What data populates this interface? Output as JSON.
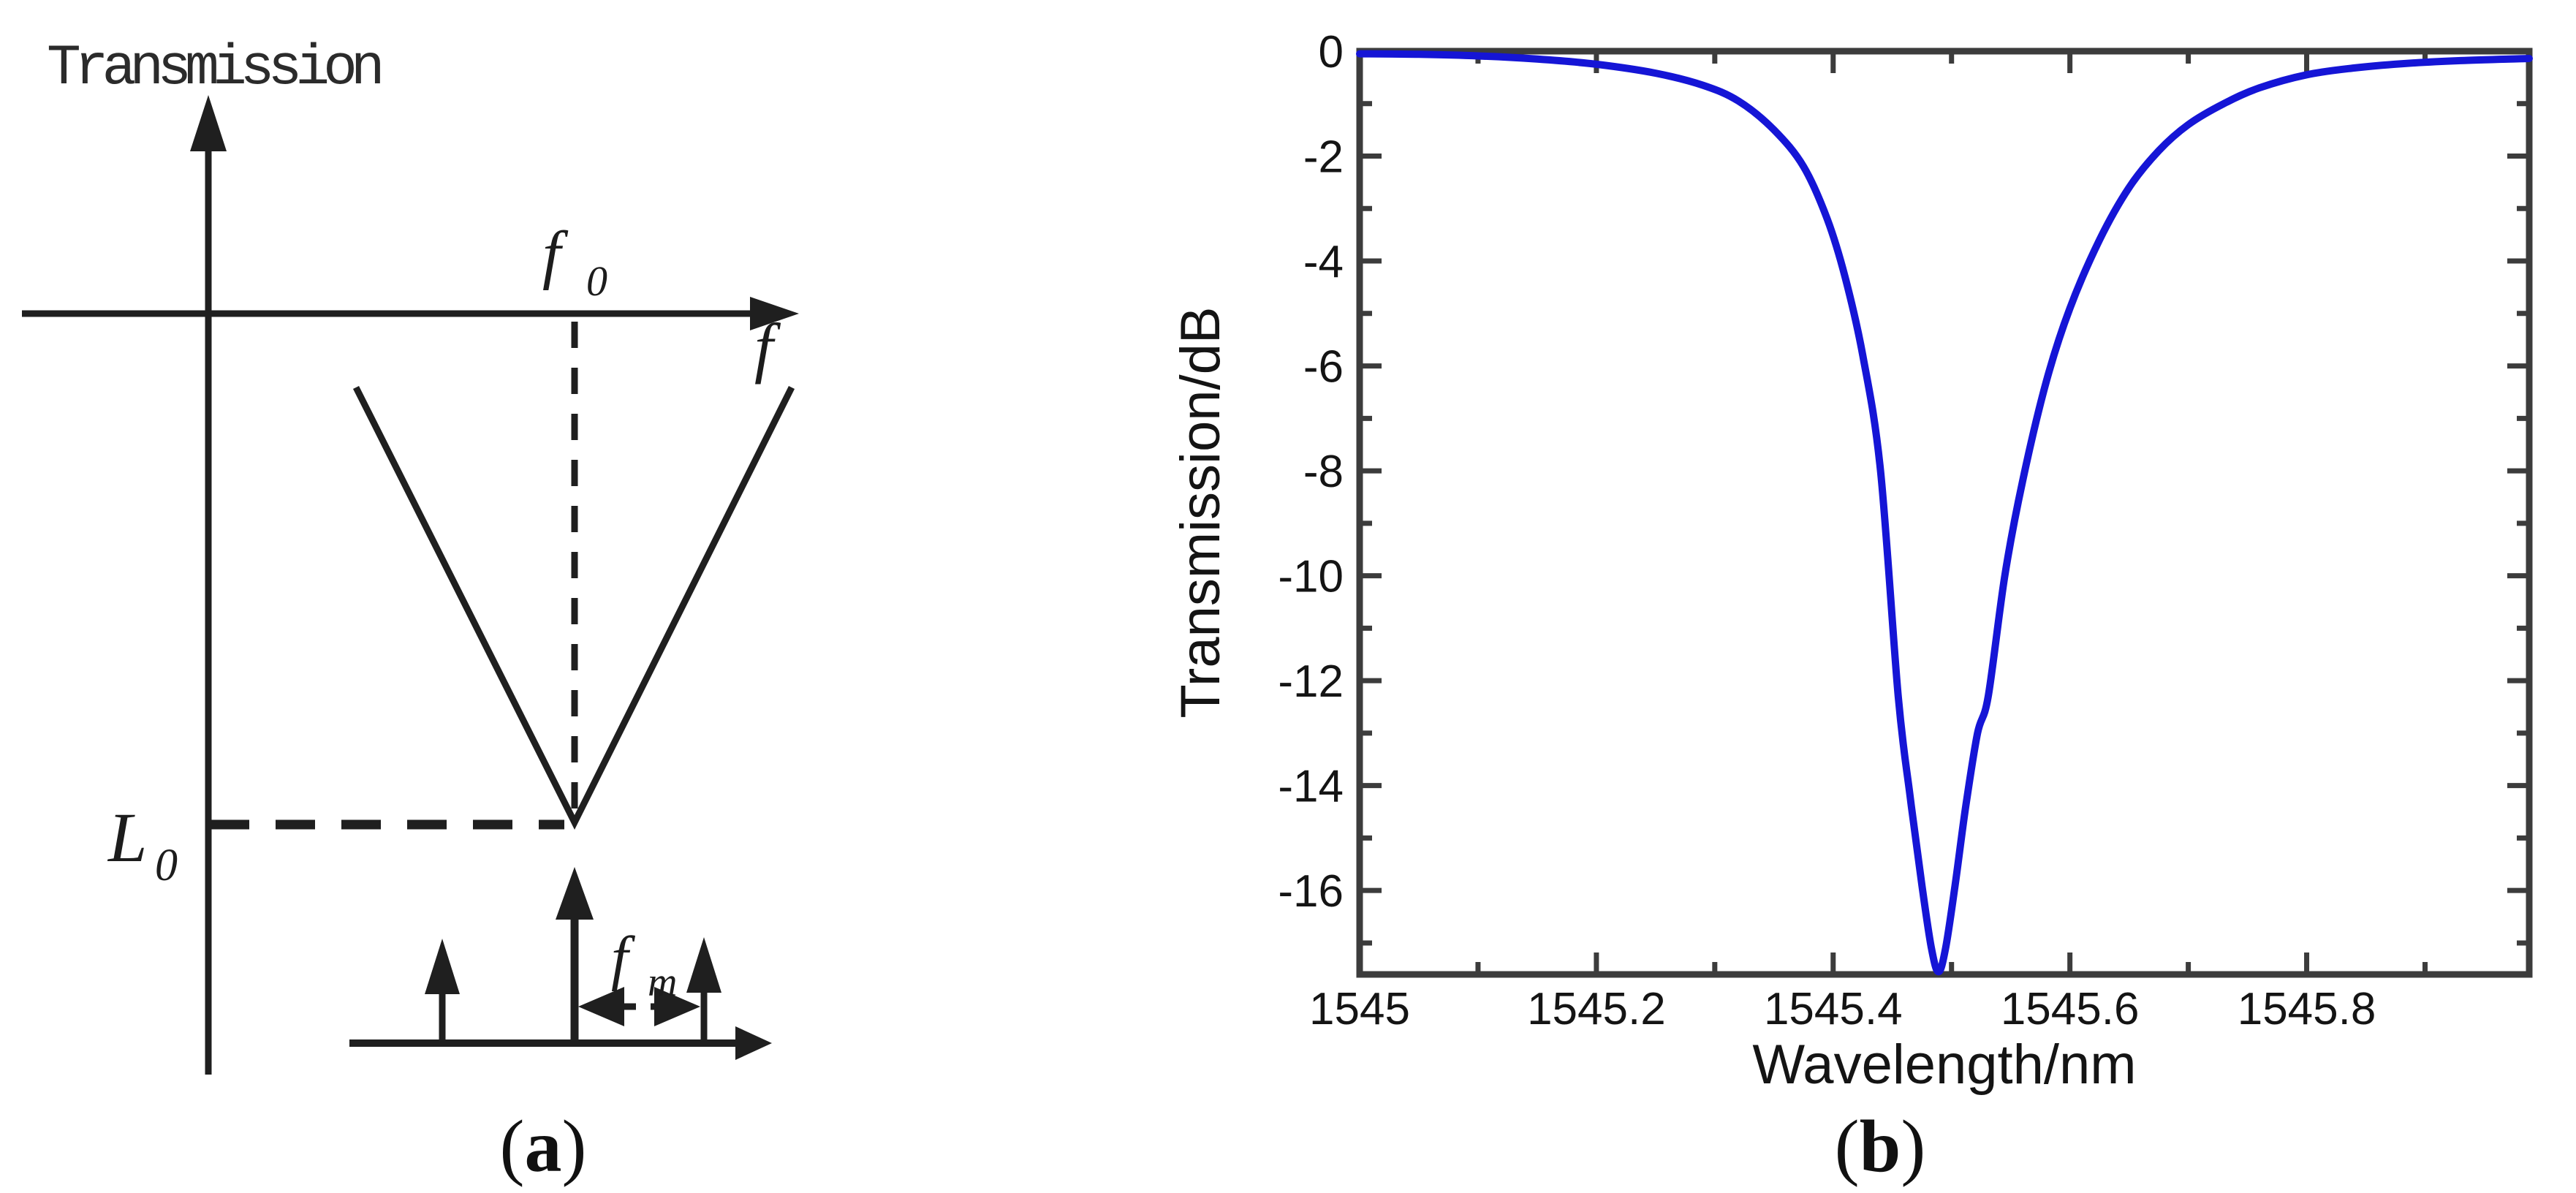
{
  "figure": {
    "panel_a": {
      "caption_open": "(",
      "caption_letter": "a",
      "caption_close": ")",
      "axis_y_label": "Transmission",
      "axis_x_label": "f",
      "resonance_label_base": "f",
      "resonance_label_sub": "0",
      "loss_label_base": "L",
      "loss_label_sub": "0",
      "modulation_label_base": "f",
      "modulation_label_sub": "m",
      "icons": [
        "up-arrow-icon",
        "right-arrow-icon",
        "double-headed-dashed-arrow-icon"
      ]
    },
    "panel_b": {
      "caption_open": "(",
      "caption_letter": "b",
      "caption_close": ")"
    }
  },
  "chart_data": {
    "type": "line",
    "title": "",
    "xlabel": "Wavelength/nm",
    "ylabel": "Transmission/dB",
    "xlim": [
      1545.0,
      1545.988
    ],
    "ylim": [
      -17.6,
      0
    ],
    "grid": false,
    "legend_position": "none",
    "line_color": "#1515d6",
    "spine_color": "#3c3c3c",
    "x_major_ticks": [
      1545.0,
      1545.2,
      1545.4,
      1545.6,
      1545.8
    ],
    "x_tick_labels": [
      "1545",
      "1545.2",
      "1545.4",
      "1545.6",
      "1545.8"
    ],
    "x_minor_ticks": [
      1545.1,
      1545.3,
      1545.5,
      1545.7,
      1545.9
    ],
    "y_major_ticks": [
      0,
      -2,
      -4,
      -6,
      -8,
      -10,
      -12,
      -14,
      -16
    ],
    "y_tick_labels": [
      "0",
      "-2",
      "-4",
      "-6",
      "-8",
      "-10",
      "-12",
      "-14",
      "-16"
    ],
    "y_minor_ticks": [
      -1,
      -3,
      -5,
      -7,
      -9,
      -11,
      -13,
      -15,
      -17
    ],
    "notch_center_nm": 1545.489,
    "notch_depth_dB": -17.55,
    "series": [
      {
        "name": "transmission",
        "points": [
          [
            1545.0,
            -0.05
          ],
          [
            1545.05,
            -0.06
          ],
          [
            1545.1,
            -0.09
          ],
          [
            1545.15,
            -0.15
          ],
          [
            1545.2,
            -0.25
          ],
          [
            1545.25,
            -0.42
          ],
          [
            1545.29,
            -0.65
          ],
          [
            1545.32,
            -0.95
          ],
          [
            1545.35,
            -1.5
          ],
          [
            1545.375,
            -2.2
          ],
          [
            1545.395,
            -3.2
          ],
          [
            1545.41,
            -4.3
          ],
          [
            1545.425,
            -5.8
          ],
          [
            1545.44,
            -8.0
          ],
          [
            1545.455,
            -12.3
          ],
          [
            1545.465,
            -14.2
          ],
          [
            1545.475,
            -15.9
          ],
          [
            1545.483,
            -17.1
          ],
          [
            1545.489,
            -17.55
          ],
          [
            1545.495,
            -17.1
          ],
          [
            1545.503,
            -15.9
          ],
          [
            1545.512,
            -14.4
          ],
          [
            1545.522,
            -13.0
          ],
          [
            1545.531,
            -12.3
          ],
          [
            1545.545,
            -10.0
          ],
          [
            1545.56,
            -8.2
          ],
          [
            1545.58,
            -6.3
          ],
          [
            1545.6,
            -4.9
          ],
          [
            1545.625,
            -3.6
          ],
          [
            1545.65,
            -2.6
          ],
          [
            1545.675,
            -1.9
          ],
          [
            1545.7,
            -1.4
          ],
          [
            1545.73,
            -1.0
          ],
          [
            1545.76,
            -0.7
          ],
          [
            1545.8,
            -0.45
          ],
          [
            1545.84,
            -0.32
          ],
          [
            1545.88,
            -0.24
          ],
          [
            1545.93,
            -0.18
          ],
          [
            1545.988,
            -0.14
          ]
        ]
      }
    ]
  }
}
